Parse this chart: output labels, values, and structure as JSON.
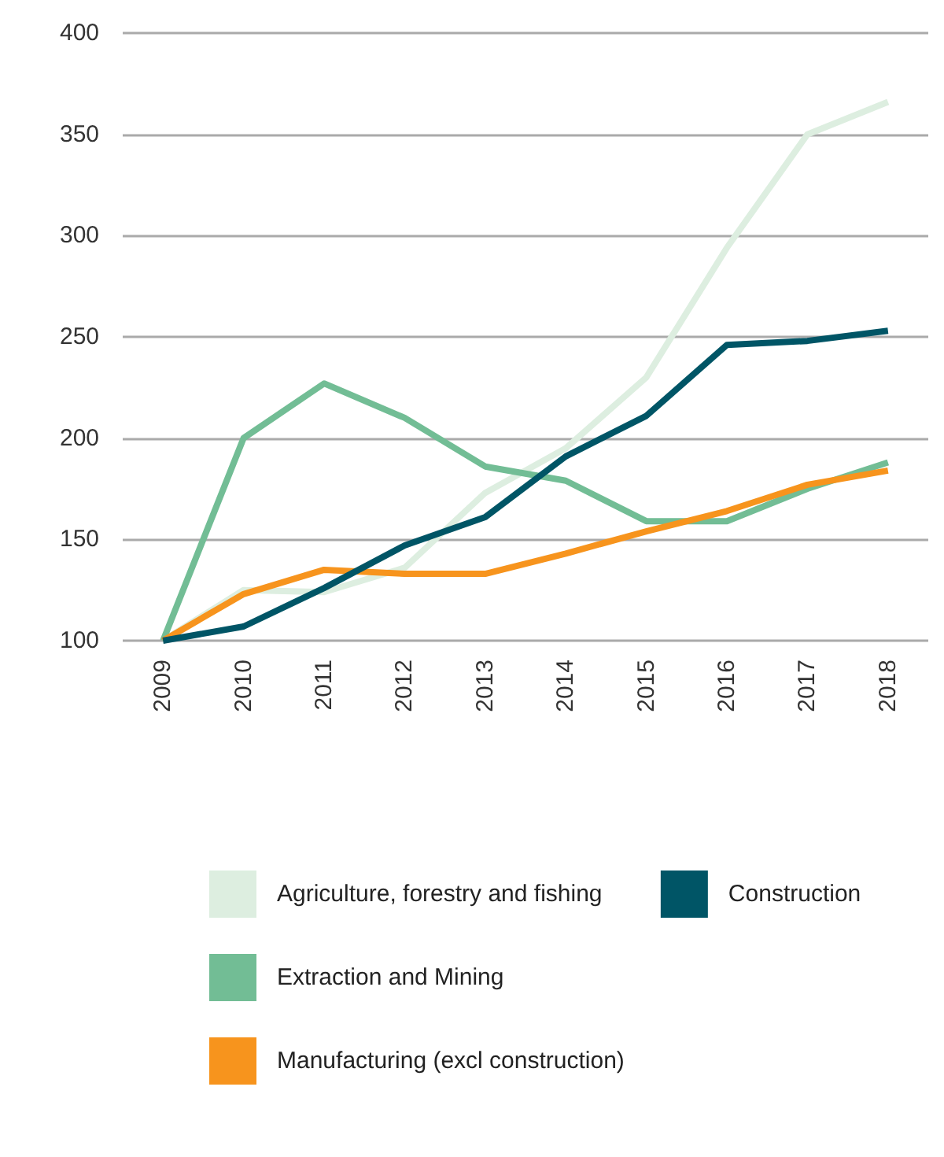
{
  "chart_data": {
    "type": "line",
    "categories": [
      "2009",
      "2010",
      "2011",
      "2012",
      "2013",
      "2014",
      "2015",
      "2016",
      "2017",
      "2018"
    ],
    "series": [
      {
        "name": "Agriculture, forestry and fishing",
        "color": "#ddeee0",
        "values": [
          100,
          125,
          124,
          136,
          173,
          195,
          230,
          294,
          350,
          366
        ]
      },
      {
        "name": "Extraction and Mining",
        "color": "#72bd95",
        "values": [
          100,
          200,
          227,
          210,
          186,
          179,
          159,
          159,
          175,
          188
        ]
      },
      {
        "name": "Manufacturing (excl construction)",
        "color": "#f7941d",
        "values": [
          100,
          123,
          135,
          133,
          133,
          143,
          154,
          164,
          177,
          184
        ]
      },
      {
        "name": "Construction",
        "color": "#005566",
        "values": [
          100,
          107,
          126,
          147,
          161,
          191,
          211,
          246,
          248,
          253
        ]
      }
    ],
    "ylim": [
      100,
      400
    ],
    "yticks": [
      100,
      150,
      200,
      250,
      300,
      350,
      400
    ],
    "grid": "y",
    "legend": "bottom",
    "marker": "none",
    "line_style": "solid"
  }
}
